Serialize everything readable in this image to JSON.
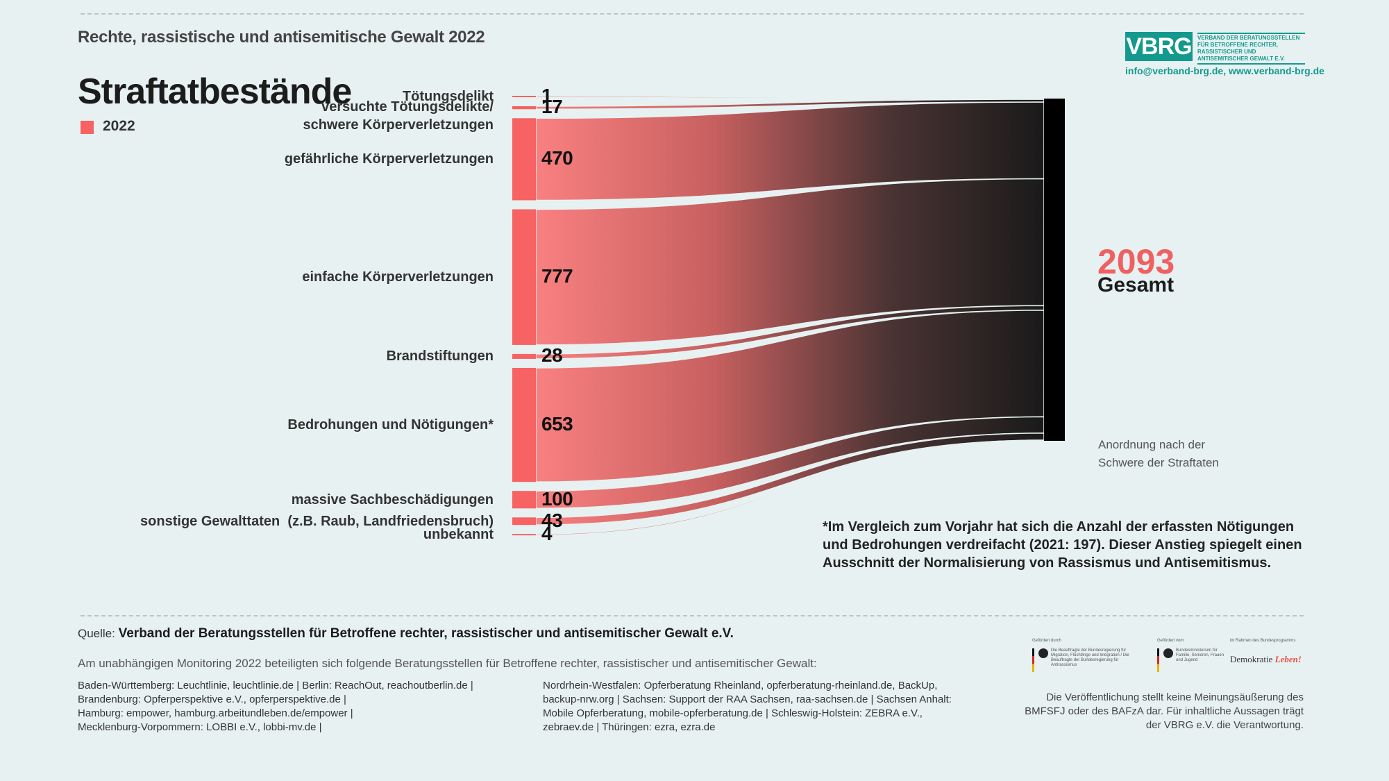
{
  "header": {
    "supertitle": "Rechte, rassistische und antisemitische Gewalt 2022",
    "title": "Straftatbestände",
    "legend_label": "2022"
  },
  "logo": {
    "mark": "VBRG",
    "text": "VERBAND DER BERATUNGSSTELLEN FÜR BETROFFENE RECHTER, RASSISTISCHER UND ANTISEMITISCHER GEWALT E.V.",
    "contact": "info@verband-brg.de, www.verband-brg.de"
  },
  "chart_data": {
    "type": "sankey",
    "series_name": "2022",
    "categories": [
      "Tötungsdelikt",
      "versuchte Tötungsdelikte/ schwere Körperverletzungen",
      "gefährliche Körperverletzungen",
      "einfache Körperverletzungen",
      "Brandstiftungen",
      "Bedrohungen und Nötigungen*",
      "massive Sachbeschädigungen",
      "sonstige Gewalttaten  (z.B. Raub, Landfriedensbruch)",
      "unbekannt"
    ],
    "values": [
      1,
      17,
      470,
      777,
      28,
      653,
      100,
      43,
      4
    ],
    "value_labels": [
      "1",
      "17",
      "470",
      "777",
      "28",
      "653",
      "100",
      "43",
      "4"
    ],
    "total": {
      "value": 2093,
      "label": "2093",
      "caption": "Gesamt"
    },
    "order_note": "Anordnung nach der Schwere der Straftaten",
    "colors": {
      "source": "#f76262",
      "flow_start": "#f98080",
      "flow_end": "#1a1a1a",
      "target": "#000000"
    }
  },
  "footnote": "*Im Vergleich zum Vorjahr hat sich die Anzahl der erfassten Nötigungen und Bedrohungen verdreifacht (2021: 197). Dieser Anstieg spiegelt einen Ausschnitt der Normalisierung von Rassismus und Antisemitismus.",
  "source": {
    "prefix": "Quelle:",
    "name": "Verband der Beratungsstellen für Betroffene rechter, rassistischer und antisemitischer Gewalt e.V."
  },
  "partners": {
    "intro": "Am unabhängigen Monitoring 2022 beteiligten sich folgende Beratungsstellen für Betroffene rechter, rassistischer und antisemitischer Gewalt:",
    "col1": [
      "Baden-Württemberg: Leuchtlinie, leuchtlinie.de | Berlin: ReachOut, reachoutberlin.de |",
      "Brandenburg: Opferperspektive e.V., opferperspektive.de |",
      "Hamburg: empower, hamburg.arbeitundleben.de/empower |",
      "Mecklenburg-Vorpommern: LOBBI e.V., lobbi-mv.de  |"
    ],
    "col2": [
      "Nordrhein-Westfalen: Opferberatung Rheinland, opferberatung-rheinland.de, BackUp,",
      "backup-nrw.org | Sachsen: Support der RAA Sachsen, raa-sachsen.de | Sachsen Anhalt:",
      "Mobile Opferberatung, mobile-opferberatung.de | Schleswig-Holstein: ZEBRA e.V.,",
      "zebraev.de | Thüringen: ezra, ezra.de"
    ]
  },
  "funders": {
    "f1_head": "Gefördert durch",
    "f1_text": "Die Beauftragte der Bundesregierung für Migration, Flüchtlinge und Integration / Die Beauftragte der Bundesregierung für Antirassismus",
    "f2_head": "Gefördert vom",
    "f2_text": "Bundesministerium für Familie, Senioren, Frauen und Jugend",
    "f3_head": "im Rahmen des Bundesprogramms",
    "f3_logo_a": "Demokratie",
    "f3_logo_b": "Leben!"
  },
  "disclaimer": "Die Veröffentlichung stellt keine Meinungsäußerung des BMFSFJ oder des BAFzA dar. Für inhaltliche Aussagen trägt der VBRG e.V. die Verantwortung."
}
